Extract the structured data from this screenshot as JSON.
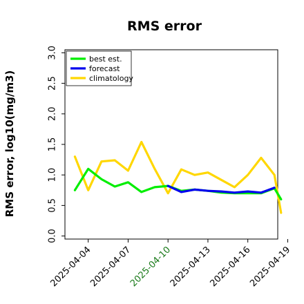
{
  "chart_data": {
    "type": "line",
    "title": "RMS error",
    "ylabel": "RMS error, log10(mg/m3)",
    "xlabel": "",
    "ylim": [
      -0.05,
      3.05
    ],
    "yticks": [
      "0.0",
      "0.5",
      "1.0",
      "1.5",
      "2.0",
      "2.5",
      "3.0"
    ],
    "ytick_values": [
      0.0,
      0.5,
      1.0,
      1.5,
      2.0,
      2.5,
      3.0
    ],
    "xlim": [
      -1.5,
      30.5
    ],
    "xticks": [
      {
        "pos": 2,
        "label": "2025-04-04",
        "color": "#000000"
      },
      {
        "pos": 8,
        "label": "2025-04-07",
        "color": "#000000"
      },
      {
        "pos": 14,
        "label": "2025-04-10",
        "color": "#1a7a1a"
      },
      {
        "pos": 20,
        "label": "2025-04-13",
        "color": "#000000"
      },
      {
        "pos": 26,
        "label": "2025-04-16",
        "color": "#000000"
      },
      {
        "pos": 32,
        "label": "2025-04-19",
        "color": "#000000"
      }
    ],
    "grid": false,
    "legend_position": "top-left",
    "series": [
      {
        "name": "best est.",
        "color": "#00ee00",
        "x": [
          0,
          2,
          4,
          6,
          8,
          10,
          12,
          14
        ],
        "y": [
          0.75,
          1.1,
          0.93,
          0.81,
          0.88,
          0.72,
          0.8,
          0.82
        ]
      },
      {
        "name": "forecast",
        "color": "#0000ee",
        "x": [
          14,
          16,
          18,
          20,
          22,
          24,
          26,
          28,
          30
        ],
        "y": [
          0.82,
          0.72,
          0.76,
          0.74,
          0.73,
          0.71,
          0.73,
          0.71,
          0.79
        ]
      },
      {
        "name": "best est.",
        "color": "#00ee00",
        "x": [
          14,
          16,
          18,
          20,
          22,
          24,
          26,
          28,
          30,
          31
        ],
        "y": [
          0.82,
          0.74,
          0.76,
          0.74,
          0.71,
          0.7,
          0.7,
          0.7,
          0.78,
          0.6
        ]
      },
      {
        "name": "climatology",
        "color": "#ffd700",
        "x": [
          0,
          2,
          4,
          6,
          8,
          10,
          12,
          14,
          16,
          18,
          20,
          22,
          24,
          26,
          28,
          30,
          31
        ],
        "y": [
          1.3,
          0.75,
          1.22,
          1.24,
          1.07,
          1.54,
          1.1,
          0.7,
          1.09,
          1.0,
          1.04,
          0.92,
          0.8,
          1.0,
          1.28,
          1.0,
          0.38
        ]
      }
    ],
    "legend": [
      {
        "name": "best est.",
        "color": "#00ee00"
      },
      {
        "name": "forecast",
        "color": "#0000ee"
      },
      {
        "name": "climatology",
        "color": "#ffd700"
      }
    ]
  }
}
